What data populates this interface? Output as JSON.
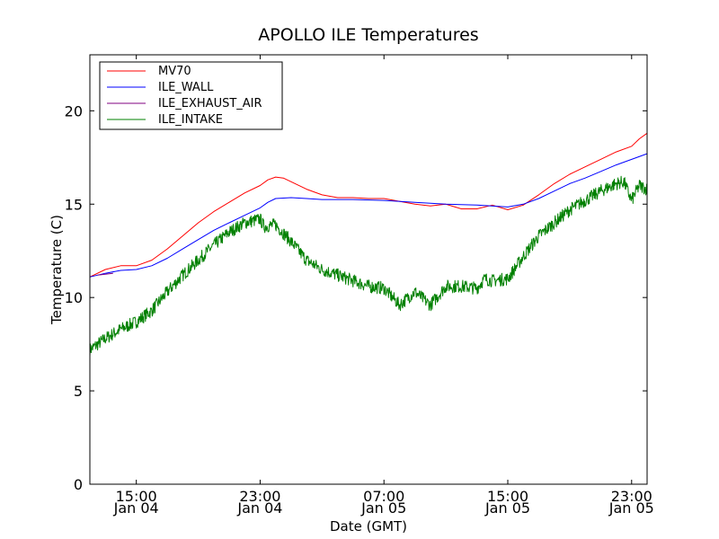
{
  "chart_data": {
    "type": "line",
    "title": "APOLLO ILE Temperatures",
    "xlabel": "Date (GMT)",
    "ylabel": "Temperature (C)",
    "ylim": [
      0,
      23
    ],
    "xlim": [
      "2015-01-04 12:00",
      "2015-01-06 00:00"
    ],
    "yticks": [
      0,
      5,
      10,
      15,
      20
    ],
    "xticks": [
      {
        "x": "2015-01-04 15:00",
        "time": "15:00",
        "date": "Jan 04"
      },
      {
        "x": "2015-01-04 23:00",
        "time": "23:00",
        "date": "Jan 04"
      },
      {
        "x": "2015-01-05 07:00",
        "time": "07:00",
        "date": "Jan 05"
      },
      {
        "x": "2015-01-05 15:00",
        "time": "15:00",
        "date": "Jan 05"
      },
      {
        "x": "2015-01-05 23:00",
        "time": "23:00",
        "date": "Jan 05"
      }
    ],
    "grid": false,
    "legend": "top-left",
    "series": [
      {
        "name": "MV70",
        "color": "#ff0000",
        "points": [
          [
            "2015-01-04 12:00",
            11.1
          ],
          [
            "2015-01-04 13:00",
            11.5
          ],
          [
            "2015-01-04 14:00",
            11.7
          ],
          [
            "2015-01-04 15:00",
            11.7
          ],
          [
            "2015-01-04 16:00",
            12.0
          ],
          [
            "2015-01-04 17:00",
            12.6
          ],
          [
            "2015-01-04 18:00",
            13.3
          ],
          [
            "2015-01-04 19:00",
            14.0
          ],
          [
            "2015-01-04 20:00",
            14.6
          ],
          [
            "2015-01-04 21:00",
            15.1
          ],
          [
            "2015-01-04 22:00",
            15.6
          ],
          [
            "2015-01-04 23:00",
            16.0
          ],
          [
            "2015-01-04 23:30",
            16.3
          ],
          [
            "2015-01-05 00:00",
            16.45
          ],
          [
            "2015-01-05 00:30",
            16.4
          ],
          [
            "2015-01-05 01:00",
            16.2
          ],
          [
            "2015-01-05 02:00",
            15.8
          ],
          [
            "2015-01-05 03:00",
            15.5
          ],
          [
            "2015-01-05 04:00",
            15.35
          ],
          [
            "2015-01-05 05:00",
            15.35
          ],
          [
            "2015-01-05 06:00",
            15.3
          ],
          [
            "2015-01-05 07:00",
            15.3
          ],
          [
            "2015-01-05 08:00",
            15.15
          ],
          [
            "2015-01-05 09:00",
            15.0
          ],
          [
            "2015-01-05 10:00",
            14.9
          ],
          [
            "2015-01-05 11:00",
            15.0
          ],
          [
            "2015-01-05 12:00",
            14.75
          ],
          [
            "2015-01-05 13:00",
            14.75
          ],
          [
            "2015-01-05 14:00",
            14.95
          ],
          [
            "2015-01-05 15:00",
            14.7
          ],
          [
            "2015-01-05 16:00",
            14.95
          ],
          [
            "2015-01-05 17:00",
            15.5
          ],
          [
            "2015-01-05 18:00",
            16.1
          ],
          [
            "2015-01-05 19:00",
            16.6
          ],
          [
            "2015-01-05 20:00",
            17.0
          ],
          [
            "2015-01-05 21:00",
            17.4
          ],
          [
            "2015-01-05 22:00",
            17.8
          ],
          [
            "2015-01-05 23:00",
            18.1
          ],
          [
            "2015-01-05 23:30",
            18.5
          ],
          [
            "2015-01-06 00:00",
            18.8
          ]
        ]
      },
      {
        "name": "ILE_WALL",
        "color": "#0000ff",
        "points": [
          [
            "2015-01-04 12:00",
            11.1
          ],
          [
            "2015-01-04 13:00",
            11.3
          ],
          [
            "2015-01-04 14:00",
            11.45
          ],
          [
            "2015-01-04 15:00",
            11.5
          ],
          [
            "2015-01-04 16:00",
            11.7
          ],
          [
            "2015-01-04 17:00",
            12.1
          ],
          [
            "2015-01-04 18:00",
            12.6
          ],
          [
            "2015-01-04 19:00",
            13.1
          ],
          [
            "2015-01-04 20:00",
            13.6
          ],
          [
            "2015-01-04 21:00",
            14.0
          ],
          [
            "2015-01-04 22:00",
            14.4
          ],
          [
            "2015-01-04 23:00",
            14.8
          ],
          [
            "2015-01-04 23:30",
            15.1
          ],
          [
            "2015-01-05 00:00",
            15.3
          ],
          [
            "2015-01-05 01:00",
            15.35
          ],
          [
            "2015-01-05 02:00",
            15.3
          ],
          [
            "2015-01-05 03:00",
            15.25
          ],
          [
            "2015-01-05 05:00",
            15.25
          ],
          [
            "2015-01-05 07:00",
            15.2
          ],
          [
            "2015-01-05 09:00",
            15.1
          ],
          [
            "2015-01-05 11:00",
            15.0
          ],
          [
            "2015-01-05 13:00",
            14.95
          ],
          [
            "2015-01-05 15:00",
            14.85
          ],
          [
            "2015-01-05 16:00",
            15.0
          ],
          [
            "2015-01-05 17:00",
            15.3
          ],
          [
            "2015-01-05 18:00",
            15.7
          ],
          [
            "2015-01-05 19:00",
            16.1
          ],
          [
            "2015-01-05 20:00",
            16.4
          ],
          [
            "2015-01-05 21:00",
            16.75
          ],
          [
            "2015-01-05 22:00",
            17.1
          ],
          [
            "2015-01-05 23:00",
            17.4
          ],
          [
            "2015-01-06 00:00",
            17.7
          ]
        ]
      },
      {
        "name": "ILE_EXHAUST_AIR",
        "color": "#800080",
        "points": [
          [
            "2015-01-04 12:30",
            11.2
          ],
          [
            "2015-01-04 13:30",
            11.3
          ]
        ]
      },
      {
        "name": "ILE_INTAKE",
        "color": "#008000",
        "noise": 0.35,
        "points": [
          [
            "2015-01-04 12:00",
            7.2
          ],
          [
            "2015-01-04 13:00",
            7.8
          ],
          [
            "2015-01-04 14:00",
            8.3
          ],
          [
            "2015-01-04 15:00",
            8.7
          ],
          [
            "2015-01-04 16:00",
            9.3
          ],
          [
            "2015-01-04 17:00",
            10.3
          ],
          [
            "2015-01-04 18:00",
            11.2
          ],
          [
            "2015-01-04 19:00",
            12.0
          ],
          [
            "2015-01-04 20:00",
            12.8
          ],
          [
            "2015-01-04 21:00",
            13.5
          ],
          [
            "2015-01-04 22:00",
            14.0
          ],
          [
            "2015-01-04 23:00",
            14.2
          ],
          [
            "2015-01-04 23:15",
            13.8
          ],
          [
            "2015-01-05 00:00",
            13.9
          ],
          [
            "2015-01-05 01:00",
            13.0
          ],
          [
            "2015-01-05 02:00",
            12.0
          ],
          [
            "2015-01-05 03:00",
            11.5
          ],
          [
            "2015-01-05 04:00",
            11.2
          ],
          [
            "2015-01-05 05:00",
            10.9
          ],
          [
            "2015-01-05 06:00",
            10.6
          ],
          [
            "2015-01-05 07:00",
            10.5
          ],
          [
            "2015-01-05 08:00",
            9.6
          ],
          [
            "2015-01-05 09:00",
            10.3
          ],
          [
            "2015-01-05 10:00",
            9.6
          ],
          [
            "2015-01-05 11:00",
            10.6
          ],
          [
            "2015-01-05 12:00",
            10.6
          ],
          [
            "2015-01-05 13:00",
            10.5
          ],
          [
            "2015-01-05 13:30",
            11.0
          ],
          [
            "2015-01-05 14:00",
            10.9
          ],
          [
            "2015-01-05 15:00",
            11.0
          ],
          [
            "2015-01-05 16:00",
            12.2
          ],
          [
            "2015-01-05 17:00",
            13.3
          ],
          [
            "2015-01-05 18:00",
            14.0
          ],
          [
            "2015-01-05 19:00",
            14.7
          ],
          [
            "2015-01-05 20:00",
            15.2
          ],
          [
            "2015-01-05 21:00",
            15.7
          ],
          [
            "2015-01-05 22:00",
            16.1
          ],
          [
            "2015-01-05 22:30",
            16.2
          ],
          [
            "2015-01-05 23:00",
            15.2
          ],
          [
            "2015-01-05 23:30",
            16.0
          ],
          [
            "2015-01-06 00:00",
            15.8
          ]
        ]
      }
    ]
  }
}
